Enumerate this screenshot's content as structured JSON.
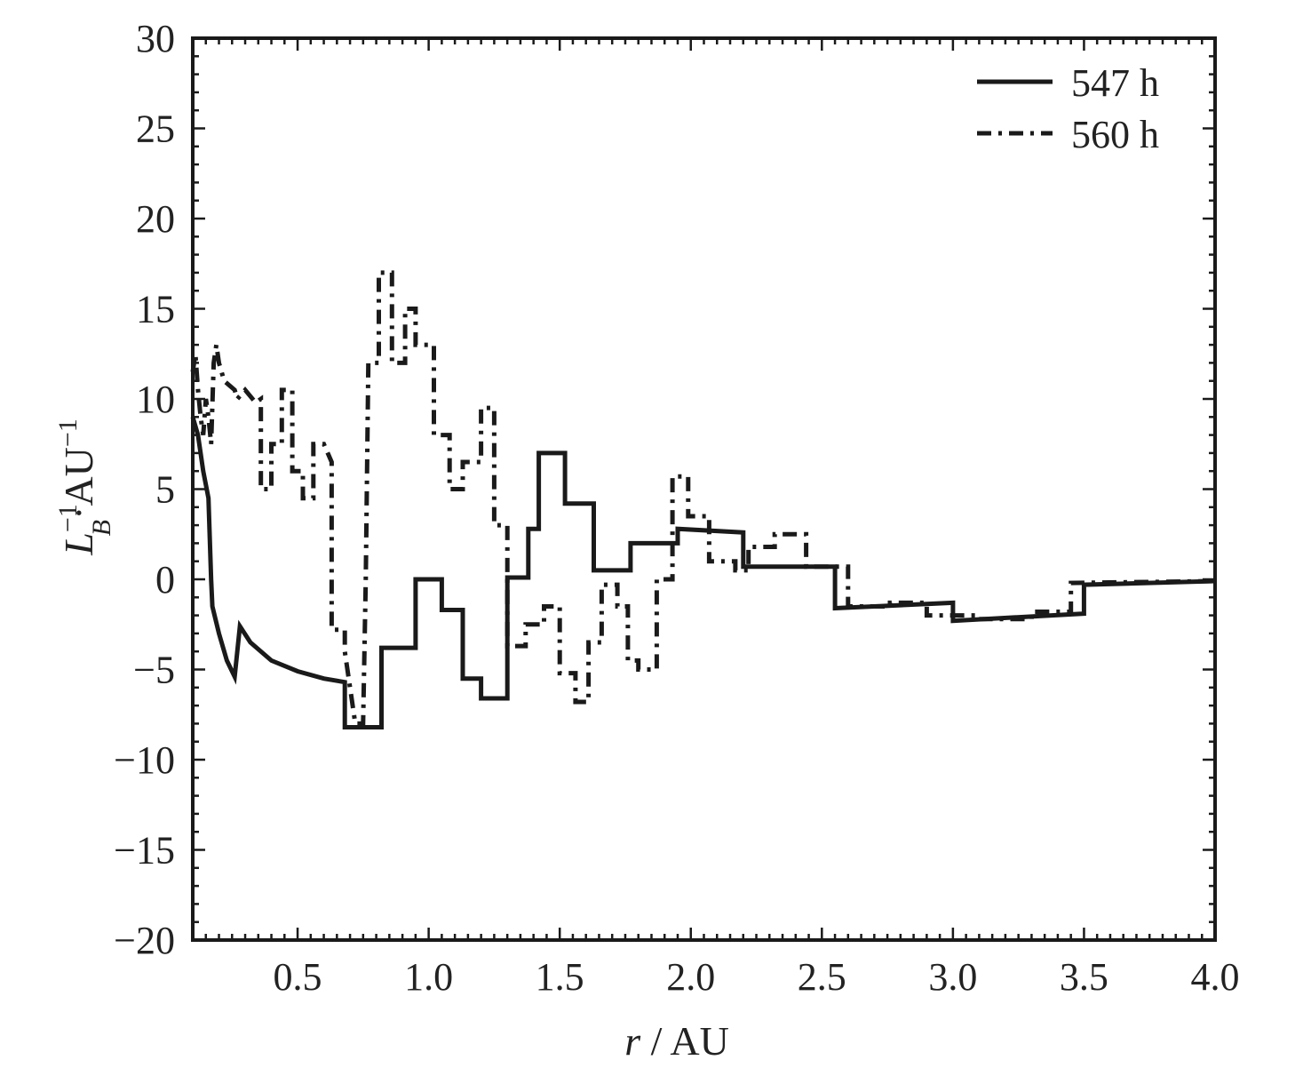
{
  "chart_data": {
    "type": "line",
    "title": "",
    "xlabel": "r / AU",
    "ylabel": "L_B^-1 · AU^-1",
    "xlim": [
      0.1,
      4.0
    ],
    "ylim": [
      -20,
      30
    ],
    "x_ticks": [
      0.5,
      1.0,
      1.5,
      2.0,
      2.5,
      3.0,
      3.5,
      4.0
    ],
    "x_tick_labels": [
      "0.5",
      "1.0",
      "1.5",
      "2.0",
      "2.5",
      "3.0",
      "3.5",
      "4.0"
    ],
    "y_ticks": [
      30,
      25,
      20,
      15,
      10,
      5,
      0,
      -5,
      -10,
      -15,
      -20
    ],
    "y_tick_labels": [
      "30",
      "25",
      "20",
      "15",
      "10",
      "5",
      "0",
      "−5",
      "−10",
      "−15",
      "−20"
    ],
    "grid": false,
    "legend_position": "top-right",
    "colors": {
      "line": "#1a1a1a",
      "frame": "#1a1a1a",
      "text": "#222222",
      "background": "#ffffff"
    },
    "series": [
      {
        "name": "547 h",
        "style": "solid",
        "points": [
          [
            0.1,
            9.0
          ],
          [
            0.12,
            8.0
          ],
          [
            0.14,
            6.0
          ],
          [
            0.16,
            4.5
          ],
          [
            0.17,
            0.0
          ],
          [
            0.175,
            -1.5
          ],
          [
            0.2,
            -3.0
          ],
          [
            0.23,
            -4.5
          ],
          [
            0.26,
            -5.4
          ],
          [
            0.28,
            -2.6
          ],
          [
            0.32,
            -3.5
          ],
          [
            0.4,
            -4.5
          ],
          [
            0.5,
            -5.1
          ],
          [
            0.6,
            -5.5
          ],
          [
            0.68,
            -5.7
          ],
          [
            0.68,
            -8.2
          ],
          [
            0.82,
            -8.2
          ],
          [
            0.82,
            -3.8
          ],
          [
            0.95,
            -3.8
          ],
          [
            0.95,
            0.0
          ],
          [
            1.05,
            0.0
          ],
          [
            1.05,
            -1.7
          ],
          [
            1.13,
            -1.7
          ],
          [
            1.13,
            -5.5
          ],
          [
            1.2,
            -5.5
          ],
          [
            1.2,
            -6.6
          ],
          [
            1.3,
            -6.6
          ],
          [
            1.3,
            0.1
          ],
          [
            1.38,
            0.1
          ],
          [
            1.38,
            2.8
          ],
          [
            1.42,
            2.8
          ],
          [
            1.42,
            7.0
          ],
          [
            1.52,
            7.0
          ],
          [
            1.52,
            4.2
          ],
          [
            1.63,
            4.2
          ],
          [
            1.63,
            0.5
          ],
          [
            1.77,
            0.5
          ],
          [
            1.77,
            2.0
          ],
          [
            1.95,
            2.0
          ],
          [
            1.95,
            2.8
          ],
          [
            2.2,
            2.6
          ],
          [
            2.2,
            0.7
          ],
          [
            2.55,
            0.7
          ],
          [
            2.55,
            -1.6
          ],
          [
            3.0,
            -1.3
          ],
          [
            3.0,
            -2.3
          ],
          [
            3.5,
            -1.9
          ],
          [
            3.5,
            -0.3
          ],
          [
            4.0,
            -0.1
          ]
        ]
      },
      {
        "name": "560 h",
        "style": "dashdot",
        "points": [
          [
            0.1,
            11.5
          ],
          [
            0.11,
            12.5
          ],
          [
            0.12,
            10.5
          ],
          [
            0.13,
            9.0
          ],
          [
            0.14,
            8.0
          ],
          [
            0.15,
            10.0
          ],
          [
            0.16,
            9.0
          ],
          [
            0.17,
            7.5
          ],
          [
            0.18,
            12.0
          ],
          [
            0.19,
            13.0
          ],
          [
            0.2,
            12.0
          ],
          [
            0.22,
            11.0
          ],
          [
            0.26,
            10.5
          ],
          [
            0.27,
            10.0
          ],
          [
            0.3,
            10.5
          ],
          [
            0.34,
            9.8
          ],
          [
            0.36,
            10.0
          ],
          [
            0.36,
            5.0
          ],
          [
            0.4,
            5.0
          ],
          [
            0.4,
            7.5
          ],
          [
            0.44,
            7.5
          ],
          [
            0.44,
            10.5
          ],
          [
            0.48,
            10.5
          ],
          [
            0.48,
            6.0
          ],
          [
            0.52,
            6.0
          ],
          [
            0.52,
            4.5
          ],
          [
            0.56,
            4.5
          ],
          [
            0.56,
            7.5
          ],
          [
            0.6,
            7.5
          ],
          [
            0.63,
            6.5
          ],
          [
            0.63,
            -2.8
          ],
          [
            0.68,
            -2.8
          ],
          [
            0.68,
            -4.0
          ],
          [
            0.72,
            -8.0
          ],
          [
            0.75,
            -8.0
          ],
          [
            0.76,
            0.0
          ],
          [
            0.77,
            12.0
          ],
          [
            0.81,
            12.0
          ],
          [
            0.81,
            17.0
          ],
          [
            0.86,
            17.0
          ],
          [
            0.86,
            12.0
          ],
          [
            0.91,
            12.0
          ],
          [
            0.91,
            15.0
          ],
          [
            0.95,
            15.0
          ],
          [
            0.95,
            13.0
          ],
          [
            1.02,
            13.0
          ],
          [
            1.02,
            8.0
          ],
          [
            1.08,
            8.0
          ],
          [
            1.08,
            5.0
          ],
          [
            1.13,
            5.0
          ],
          [
            1.13,
            6.5
          ],
          [
            1.2,
            6.5
          ],
          [
            1.2,
            9.5
          ],
          [
            1.25,
            9.5
          ],
          [
            1.25,
            3.0
          ],
          [
            1.3,
            3.0
          ],
          [
            1.3,
            -3.7
          ],
          [
            1.37,
            -3.7
          ],
          [
            1.37,
            -2.5
          ],
          [
            1.44,
            -2.5
          ],
          [
            1.44,
            -1.5
          ],
          [
            1.5,
            -1.5
          ],
          [
            1.5,
            -5.2
          ],
          [
            1.56,
            -5.2
          ],
          [
            1.56,
            -6.8
          ],
          [
            1.61,
            -6.8
          ],
          [
            1.61,
            -3.5
          ],
          [
            1.66,
            -3.5
          ],
          [
            1.66,
            -0.3
          ],
          [
            1.72,
            -0.3
          ],
          [
            1.72,
            -1.5
          ],
          [
            1.76,
            -1.5
          ],
          [
            1.76,
            -4.5
          ],
          [
            1.8,
            -4.5
          ],
          [
            1.8,
            -5.0
          ],
          [
            1.87,
            -5.0
          ],
          [
            1.87,
            0.0
          ],
          [
            1.93,
            0.0
          ],
          [
            1.93,
            5.7
          ],
          [
            1.99,
            5.7
          ],
          [
            1.99,
            3.5
          ],
          [
            2.07,
            3.5
          ],
          [
            2.07,
            1.0
          ],
          [
            2.17,
            1.0
          ],
          [
            2.17,
            0.5
          ],
          [
            2.22,
            0.5
          ],
          [
            2.22,
            1.8
          ],
          [
            2.32,
            1.8
          ],
          [
            2.32,
            2.5
          ],
          [
            2.44,
            2.5
          ],
          [
            2.44,
            0.7
          ],
          [
            2.6,
            0.7
          ],
          [
            2.6,
            -1.5
          ],
          [
            2.76,
            -1.5
          ],
          [
            2.76,
            -1.3
          ],
          [
            2.9,
            -1.3
          ],
          [
            2.9,
            -2.0
          ],
          [
            3.1,
            -2.0
          ],
          [
            3.1,
            -2.2
          ],
          [
            3.3,
            -2.2
          ],
          [
            3.3,
            -1.8
          ],
          [
            3.45,
            -1.8
          ],
          [
            3.45,
            -0.2
          ],
          [
            4.0,
            -0.1
          ]
        ]
      }
    ]
  }
}
